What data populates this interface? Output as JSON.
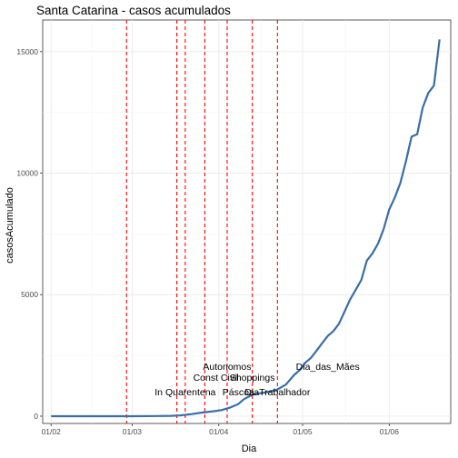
{
  "chart_data": {
    "type": "line",
    "title": "Santa Catarina - casos acumulados",
    "xlabel": "Dia",
    "ylabel": "casosAcumulado",
    "x_ticks": [
      {
        "date": "2020-02-01",
        "label": "01/02"
      },
      {
        "date": "2020-03-01",
        "label": "01/03"
      },
      {
        "date": "2020-04-01",
        "label": "01/04"
      },
      {
        "date": "2020-05-01",
        "label": "01/05"
      },
      {
        "date": "2020-06-01",
        "label": "01/06"
      }
    ],
    "y_ticks": [
      0,
      5000,
      10000,
      15000
    ],
    "xlim": [
      "2020-01-29",
      "2020-06-23"
    ],
    "ylim": [
      -300,
      16300
    ],
    "grid": true,
    "line_color": "#3a6ea5",
    "vline_color": "#ff0000",
    "series": [
      {
        "x": [
          "2020-02-01",
          "2020-02-20",
          "2020-03-01",
          "2020-03-10",
          "2020-03-15",
          "2020-03-18",
          "2020-03-22",
          "2020-03-26",
          "2020-03-30",
          "2020-04-02",
          "2020-04-05",
          "2020-04-08",
          "2020-04-10",
          "2020-04-13",
          "2020-04-16",
          "2020-04-19",
          "2020-04-22",
          "2020-04-25",
          "2020-04-28",
          "2020-04-30",
          "2020-05-02",
          "2020-05-04",
          "2020-05-06",
          "2020-05-08",
          "2020-05-10",
          "2020-05-12",
          "2020-05-14",
          "2020-05-16",
          "2020-05-18",
          "2020-05-20",
          "2020-05-22",
          "2020-05-24",
          "2020-05-26",
          "2020-05-28",
          "2020-05-30",
          "2020-06-01",
          "2020-06-03",
          "2020-06-05",
          "2020-06-07",
          "2020-06-09",
          "2020-06-11",
          "2020-06-13",
          "2020-06-15",
          "2020-06-17",
          "2020-06-19"
        ],
        "y": [
          0,
          0,
          0,
          5,
          15,
          30,
          80,
          150,
          200,
          250,
          350,
          500,
          700,
          880,
          950,
          1000,
          1100,
          1300,
          1700,
          1900,
          2200,
          2400,
          2700,
          3000,
          3300,
          3500,
          3800,
          4300,
          4800,
          5200,
          5600,
          6400,
          6700,
          7100,
          7700,
          8500,
          9000,
          9600,
          10500,
          11500,
          11600,
          12700,
          13300,
          13600,
          15500
        ]
      }
    ],
    "vlines": [
      {
        "date": "2020-02-28"
      },
      {
        "date": "2020-03-17"
      },
      {
        "date": "2020-03-20"
      },
      {
        "date": "2020-03-27"
      },
      {
        "date": "2020-04-04"
      },
      {
        "date": "2020-04-13"
      },
      {
        "date": "2020-04-22"
      }
    ],
    "annotations": [
      {
        "text": "In Quarentena",
        "date": "2020-03-20",
        "y": 850
      },
      {
        "text": "Autonomos",
        "date": "2020-04-04",
        "y": 1900
      },
      {
        "text": "Const Civil",
        "date": "2020-03-31",
        "y": 1450
      },
      {
        "text": "Shoppings",
        "date": "2020-04-13",
        "y": 1450
      },
      {
        "text": "Páscoa",
        "date": "2020-04-08",
        "y": 850
      },
      {
        "text": "DiaTrabalhador",
        "date": "2020-04-22",
        "y": 850
      },
      {
        "text": "Dia_das_Mães",
        "date": "2020-05-10",
        "y": 1900
      }
    ]
  }
}
